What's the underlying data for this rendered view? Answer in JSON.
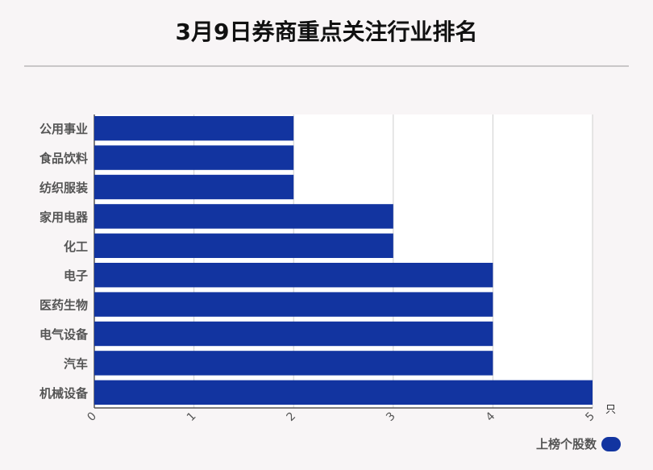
{
  "title": "3月9日券商重点关注行业排名",
  "chart_data": {
    "type": "bar",
    "orientation": "horizontal",
    "categories": [
      "公用事业",
      "食品饮料",
      "纺织服装",
      "家用电器",
      "化工",
      "电子",
      "医药生物",
      "电气设备",
      "汽车",
      "机械设备"
    ],
    "series": [
      {
        "name": "上榜个股数",
        "values": [
          2,
          2,
          2,
          3,
          3,
          4,
          4,
          4,
          4,
          5
        ]
      }
    ],
    "xlim": [
      0,
      5
    ],
    "xticks": [
      "0",
      "1",
      "2",
      "3",
      "4",
      "5"
    ],
    "xunit": "只",
    "grid": true,
    "legend": "bottom-right",
    "color": "#1234a0"
  }
}
